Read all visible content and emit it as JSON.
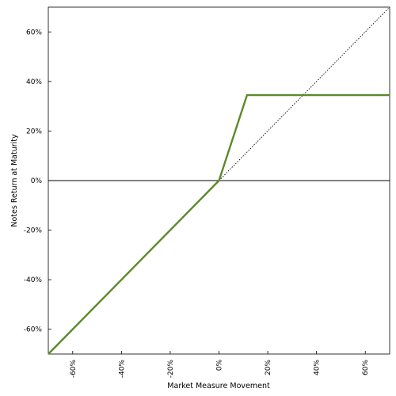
{
  "chart_data": {
    "type": "line",
    "title": "",
    "xlabel": "Market Measure Movement",
    "ylabel": "Notes Return at Maturity",
    "xlim": [
      -0.7,
      0.7
    ],
    "ylim": [
      -0.7,
      0.7
    ],
    "xticks": [
      -0.6,
      -0.4,
      -0.2,
      0.0,
      0.2,
      0.4,
      0.6
    ],
    "xtick_labels": [
      "-60%",
      "-40%",
      "-20%",
      "0%",
      "20%",
      "40%",
      "60%"
    ],
    "yticks": [
      -0.6,
      -0.4,
      -0.2,
      0.0,
      0.2,
      0.4,
      0.6
    ],
    "ytick_labels": [
      "-60%",
      "-40%",
      "-20%",
      "0%",
      "20%",
      "40%",
      "60%"
    ],
    "grid": false,
    "legend": "none",
    "series": [
      {
        "style": "solid",
        "color": "#5a8a2a",
        "x": [
          -0.7,
          0.0,
          0.115,
          0.7
        ],
        "y": [
          -0.7,
          0.0,
          0.345,
          0.345
        ]
      },
      {
        "style": "dotted",
        "color": "#000000",
        "x": [
          0.0,
          0.7
        ],
        "y": [
          0.0,
          0.7
        ]
      }
    ],
    "reference_lines": [
      {
        "axis": "y",
        "value": 0.0,
        "color": "#000000"
      }
    ]
  }
}
